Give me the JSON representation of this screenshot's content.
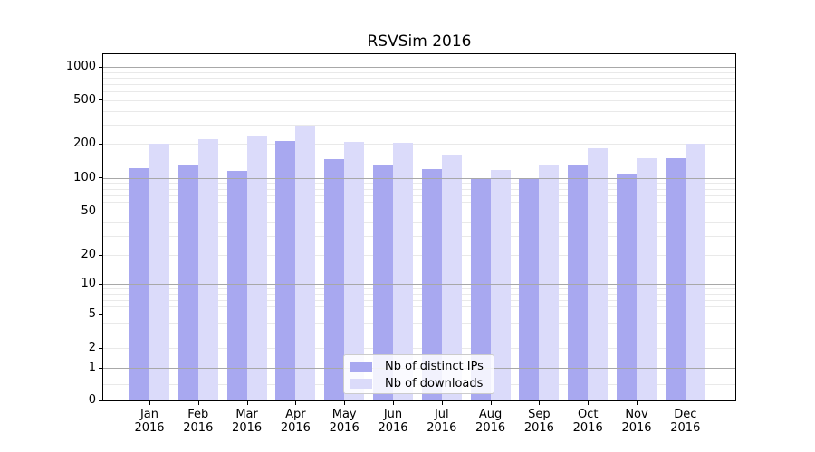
{
  "chart_data": {
    "type": "bar",
    "title": "RSVSim 2016",
    "categories": [
      "Jan 2016",
      "Feb 2016",
      "Mar 2016",
      "Apr 2016",
      "May 2016",
      "Jun 2016",
      "Jul 2016",
      "Aug 2016",
      "Sep 2016",
      "Oct 2016",
      "Nov 2016",
      "Dec 2016"
    ],
    "months": [
      "Jan",
      "Feb",
      "Mar",
      "Apr",
      "May",
      "Jun",
      "Jul",
      "Aug",
      "Sep",
      "Oct",
      "Nov",
      "Dec"
    ],
    "year_label": "2016",
    "series": [
      {
        "name": "Nb of distinct IPs",
        "color": "#a8a8f0",
        "values": [
          122,
          131,
          115,
          212,
          148,
          130,
          120,
          100,
          100,
          131,
          108,
          150
        ]
      },
      {
        "name": "Nb of downloads",
        "color": "#dbdbfa",
        "values": [
          200,
          220,
          240,
          295,
          210,
          205,
          162,
          117,
          132,
          183,
          150,
          200
        ]
      }
    ],
    "yscale": "symlog",
    "yticks": [
      0,
      1,
      2,
      5,
      10,
      20,
      50,
      100,
      200,
      500,
      1000
    ],
    "ylim": [
      0,
      1300
    ],
    "xlabel": "",
    "ylabel": "",
    "grid": true,
    "legend_position": "lower center",
    "background_color": "#ffffff",
    "axis_color": "#000000"
  }
}
